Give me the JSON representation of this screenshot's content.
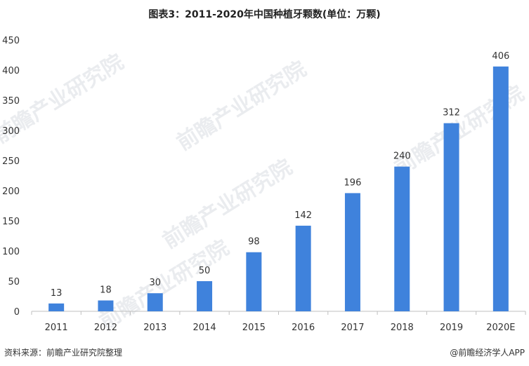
{
  "chart_data": {
    "type": "bar",
    "title": "图表3：2011-2020年中国种植牙颗数(单位：万颗)",
    "categories": [
      "2011",
      "2012",
      "2013",
      "2014",
      "2015",
      "2016",
      "2017",
      "2018",
      "2019",
      "2020E"
    ],
    "values": [
      13,
      18,
      30,
      50,
      98,
      142,
      196,
      240,
      312,
      406
    ],
    "data_labels": [
      "13",
      "18",
      "30",
      "50",
      "98",
      "142",
      "196",
      "240",
      "312",
      "406"
    ],
    "ylim": [
      0,
      450
    ],
    "yticks": [
      0,
      50,
      100,
      150,
      200,
      250,
      300,
      350,
      400,
      450
    ],
    "ytick_labels": [
      "0",
      "50",
      "100",
      "150",
      "200",
      "250",
      "300",
      "350",
      "400",
      "450"
    ],
    "grid": false,
    "bar_color": "#3f82dc"
  },
  "footer": {
    "source": "资料来源：前瞻产业研究院整理",
    "credit": "@前瞻经济学人APP"
  },
  "watermark": {
    "text": "前瞻产业研究院"
  }
}
